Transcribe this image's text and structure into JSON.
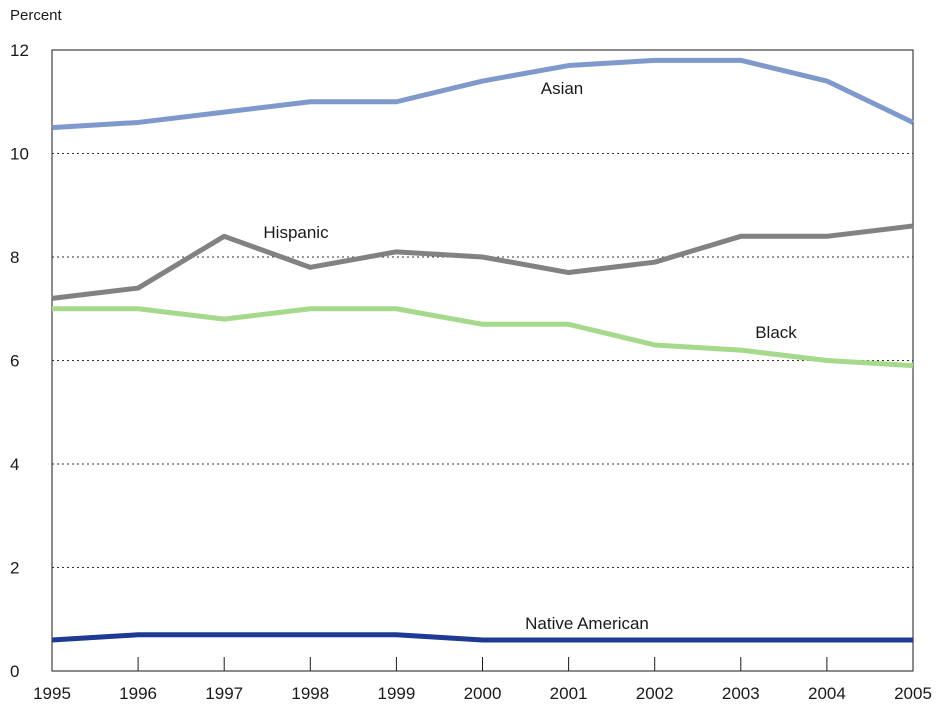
{
  "chart_data": {
    "type": "line",
    "ylabel": "Percent",
    "xlabel": "",
    "x": [
      1995,
      1996,
      1997,
      1998,
      1999,
      2000,
      2001,
      2002,
      2003,
      2004,
      2005
    ],
    "x_tick_labels": [
      "1995",
      "1996",
      "1997",
      "1998",
      "1999",
      "2000",
      "2001",
      "2002",
      "2003",
      "2004",
      "2005"
    ],
    "ylim": [
      0,
      12
    ],
    "y_ticks": [
      0,
      2,
      4,
      6,
      8,
      10,
      12
    ],
    "y_tick_labels": [
      "0",
      "2",
      "4",
      "6",
      "8",
      "10",
      "12"
    ],
    "grid": "horizontal dotted",
    "series": [
      {
        "name": "Asian",
        "color": "#7f99cc",
        "values": [
          10.5,
          10.6,
          10.8,
          11.0,
          11.0,
          11.4,
          11.7,
          11.8,
          11.8,
          11.4,
          10.6
        ]
      },
      {
        "name": "Hispanic",
        "color": "#828282",
        "values": [
          7.2,
          7.4,
          8.4,
          7.8,
          8.1,
          8.0,
          7.7,
          7.9,
          8.4,
          8.4,
          8.6
        ]
      },
      {
        "name": "Black",
        "color": "#a6d98c",
        "values": [
          7.0,
          7.0,
          6.8,
          7.0,
          7.0,
          6.7,
          6.7,
          6.3,
          6.2,
          6.0,
          5.9
        ]
      },
      {
        "name": "Native American",
        "color": "#1f3a93",
        "values": [
          0.6,
          0.7,
          0.7,
          0.7,
          0.7,
          0.6,
          0.6,
          0.6,
          0.6,
          0.6,
          0.6
        ]
      }
    ]
  }
}
